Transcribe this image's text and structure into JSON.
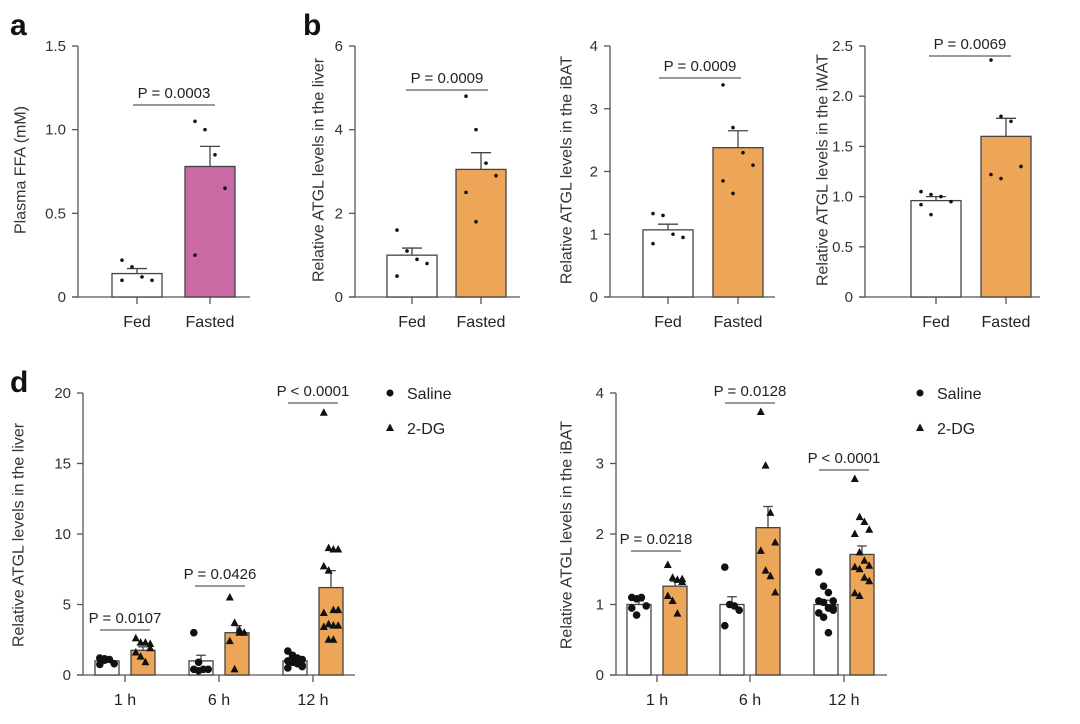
{
  "panel_letters": [
    "a",
    "b",
    "d"
  ],
  "colors": {
    "fed": "#ffffff",
    "fasted_a": "#c96aa5",
    "orange": "#eda657",
    "axis": "#555555",
    "point": "#111111"
  },
  "chart_data": [
    {
      "type": "bar",
      "panel": "a",
      "ylabel": "Plasma FFA (mM)",
      "ylim": [
        0,
        1.5
      ],
      "yticks": [
        0,
        0.5,
        1,
        1.5
      ],
      "ytick_labels": [
        "0",
        "0.5",
        "1.0",
        "1.5"
      ],
      "categories": [
        "Fed",
        "Fasted"
      ],
      "means": [
        0.14,
        0.78
      ],
      "sem": [
        0.03,
        0.12
      ],
      "points": [
        [
          0.22,
          0.18,
          0.12,
          0.1,
          0.1
        ],
        [
          1.05,
          1.0,
          0.85,
          0.65,
          0.25
        ]
      ],
      "pvalues": [
        "P = 0.0003"
      ]
    },
    {
      "type": "bar",
      "panel": "b",
      "ylabel": "Relative ATGL levels in the liver",
      "ylim": [
        0,
        6
      ],
      "yticks": [
        0,
        2,
        4,
        6
      ],
      "ytick_labels": [
        "0",
        "2",
        "4",
        "6"
      ],
      "categories": [
        "Fed",
        "Fasted"
      ],
      "means": [
        1.0,
        3.05
      ],
      "sem": [
        0.17,
        0.4
      ],
      "points": [
        [
          1.6,
          1.1,
          0.9,
          0.8,
          0.5
        ],
        [
          4.8,
          4.0,
          3.2,
          2.9,
          2.5,
          1.8
        ]
      ],
      "pvalues": [
        "P = 0.0009"
      ]
    },
    {
      "type": "bar",
      "panel": "",
      "ylabel": "Relative ATGL levels in the iBAT",
      "ylim": [
        0,
        4
      ],
      "yticks": [
        0,
        1,
        2,
        3,
        4
      ],
      "ytick_labels": [
        "0",
        "1",
        "2",
        "3",
        "4"
      ],
      "categories": [
        "Fed",
        "Fasted"
      ],
      "means": [
        1.07,
        2.38
      ],
      "sem": [
        0.09,
        0.27
      ],
      "points": [
        [
          1.33,
          1.3,
          1.0,
          0.95,
          0.85
        ],
        [
          3.38,
          2.7,
          2.3,
          2.1,
          1.85,
          1.65
        ]
      ],
      "pvalues": [
        "P = 0.0009"
      ]
    },
    {
      "type": "bar",
      "panel": "",
      "ylabel": "Relative ATGL levels in the iWAT",
      "ylim": [
        0,
        2.5
      ],
      "yticks": [
        0,
        0.5,
        1,
        1.5,
        2,
        2.5
      ],
      "ytick_labels": [
        "0",
        "0.5",
        "1.0",
        "1.5",
        "2.0",
        "2.5"
      ],
      "categories": [
        "Fed",
        "Fasted"
      ],
      "means": [
        0.96,
        1.6
      ],
      "sem": [
        0.04,
        0.18
      ],
      "points": [
        [
          1.05,
          1.02,
          1.0,
          0.95,
          0.92,
          0.82
        ],
        [
          2.36,
          1.8,
          1.75,
          1.3,
          1.22,
          1.18
        ]
      ],
      "pvalues": [
        "P = 0.0069"
      ]
    },
    {
      "type": "bar",
      "panel": "d",
      "ylabel": "Relative ATGL levels in the liver",
      "ylim": [
        0,
        20
      ],
      "yticks": [
        0,
        5,
        10,
        15,
        20
      ],
      "ytick_labels": [
        "0",
        "5",
        "10",
        "15",
        "20"
      ],
      "categories": [
        "1 h",
        "6 h",
        "12 h"
      ],
      "legend": [
        "Saline",
        "2-DG"
      ],
      "series": [
        {
          "name": "Saline",
          "means": [
            1.0,
            1.0,
            1.0
          ],
          "sem": [
            0.1,
            0.4,
            0.1
          ],
          "points": [
            [
              1.2,
              1.15,
              1.1,
              0.8,
              0.75,
              1.05
            ],
            [
              3.0,
              0.9,
              0.4,
              0.4,
              0.4,
              0.3
            ],
            [
              1.7,
              1.4,
              1.2,
              1.1,
              1.0,
              0.9,
              0.8,
              0.6,
              0.5,
              1.3,
              1.0,
              0.7
            ]
          ]
        },
        {
          "name": "2-DG",
          "means": [
            1.75,
            3.0,
            6.2
          ],
          "sem": [
            0.25,
            0.5,
            1.2
          ],
          "points": [
            [
              2.6,
              2.3,
              2.3,
              1.9,
              1.6,
              1.3,
              0.9,
              2.2
            ],
            [
              5.5,
              3.7,
              3.0,
              3.0,
              2.4,
              0.4,
              3.2
            ],
            [
              18.6,
              9.0,
              8.9,
              8.9,
              7.7,
              7.4,
              4.6,
              4.6,
              4.4,
              3.6,
              3.5,
              3.5,
              3.4,
              2.5,
              2.5
            ]
          ]
        }
      ],
      "pvalues": [
        "P = 0.0107",
        "P = 0.0426",
        "P < 0.0001"
      ]
    },
    {
      "type": "bar",
      "panel": "",
      "ylabel": "Relative ATGL levels in the iBAT",
      "ylim": [
        0,
        4
      ],
      "yticks": [
        0,
        1,
        2,
        3,
        4
      ],
      "ytick_labels": [
        "0",
        "1",
        "2",
        "3",
        "4"
      ],
      "categories": [
        "1 h",
        "6 h",
        "12 h"
      ],
      "legend": [
        "Saline",
        "2-DG"
      ],
      "series": [
        {
          "name": "Saline",
          "means": [
            1.0,
            1.0,
            1.0
          ],
          "sem": [
            0.05,
            0.11,
            0.06
          ],
          "points": [
            [
              1.1,
              1.08,
              1.1,
              0.98,
              0.95,
              0.85
            ],
            [
              1.53,
              1.0,
              0.98,
              0.92,
              0.7
            ],
            [
              1.46,
              1.26,
              1.17,
              1.05,
              1.05,
              1.03,
              0.95,
              0.92,
              0.88,
              0.82,
              0.6,
              0.95
            ]
          ]
        },
        {
          "name": "2-DG",
          "means": [
            1.26,
            2.09,
            1.71
          ],
          "sem": [
            0.07,
            0.3,
            0.12
          ],
          "points": [
            [
              1.56,
              1.38,
              1.35,
              1.36,
              1.12,
              1.05,
              0.87,
              1.32
            ],
            [
              3.73,
              2.97,
              2.3,
              1.88,
              1.76,
              1.48,
              1.4,
              1.17
            ],
            [
              2.78,
              2.24,
              2.17,
              2.06,
              2.0,
              1.74,
              1.62,
              1.55,
              1.53,
              1.5,
              1.38,
              1.33,
              1.16,
              1.12
            ]
          ]
        }
      ],
      "pvalues": [
        "P = 0.0218",
        "P = 0.0128",
        "P < 0.0001"
      ]
    }
  ]
}
